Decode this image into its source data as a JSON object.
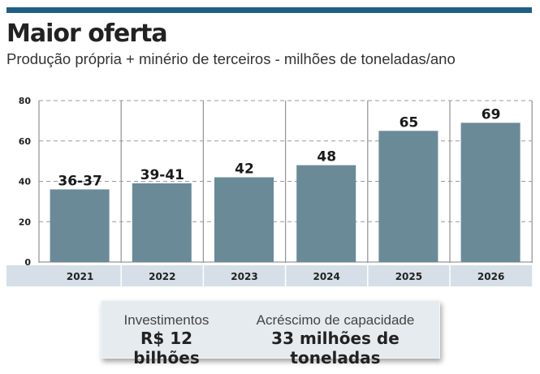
{
  "header": {
    "title": "Maior oferta",
    "subtitle": "Produção própria + minério de terceiros - milhões de toneladas/ano"
  },
  "chart_data": {
    "type": "bar",
    "title": "Maior oferta",
    "subtitle": "Produção própria + minério de terceiros - milhões de toneladas/ano",
    "categories": [
      "2021",
      "2022",
      "2023",
      "2024",
      "2025",
      "2026"
    ],
    "values": [
      36,
      39,
      42,
      48,
      65,
      69
    ],
    "data_labels": [
      "36-37",
      "39-41",
      "42",
      "48",
      "65",
      "69"
    ],
    "ylim": [
      0,
      80
    ],
    "yticks": [
      0,
      20,
      40,
      60,
      80
    ],
    "ytick_labels": [
      "0",
      "20",
      "40",
      "60",
      "80"
    ],
    "xlabel": "",
    "ylabel": "",
    "grid": true,
    "bar_color": "#6a8a98",
    "band_color": "#d6dfe7"
  },
  "summary": {
    "investments_label": "Investimentos",
    "investments_value": "R$ 12 bilhões",
    "capacity_label": "Acréscimo de capacidade",
    "capacity_value": "33 milhões de toneladas"
  }
}
